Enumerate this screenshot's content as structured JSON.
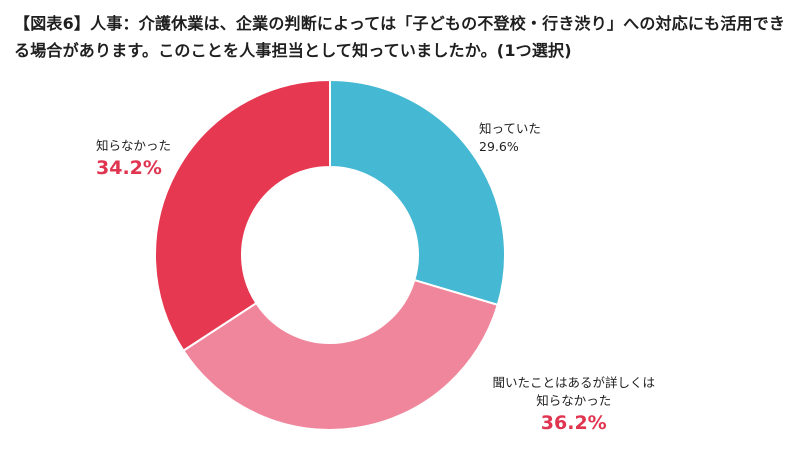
{
  "title": "【図表6】人事：介護休業は、企業の判断によっては「子どもの不登校・行き渋り」への対応にも活用できる場合があります。このことを人事担当として知っていましたか。(1つ選択)",
  "chart_data": {
    "type": "pie",
    "donut": true,
    "title": "【図表6】人事：介護休業は、企業の判断によっては「子どもの不登校・行き渋り」への対応にも活用できる場合があります。このことを人事担当として知っていましたか。(1つ選択)",
    "slices": [
      {
        "label": "知っていた",
        "label_lines": [
          "知っていた"
        ],
        "value": 29.6,
        "display": "29.6%",
        "color": "#45b8d3",
        "emphasis": false
      },
      {
        "label": "聞いたことはあるが詳しくは知らなかった",
        "label_lines": [
          "聞いたことはあるが詳しくは",
          "知らなかった"
        ],
        "value": 36.2,
        "display": "36.2%",
        "color": "#f0869b",
        "emphasis": true
      },
      {
        "label": "知らなかった",
        "label_lines": [
          "知らなかった"
        ],
        "value": 34.2,
        "display": "34.2%",
        "color": "#e63851",
        "emphasis": true
      }
    ],
    "start_angle": "12 o'clock",
    "direction": "clockwise"
  }
}
